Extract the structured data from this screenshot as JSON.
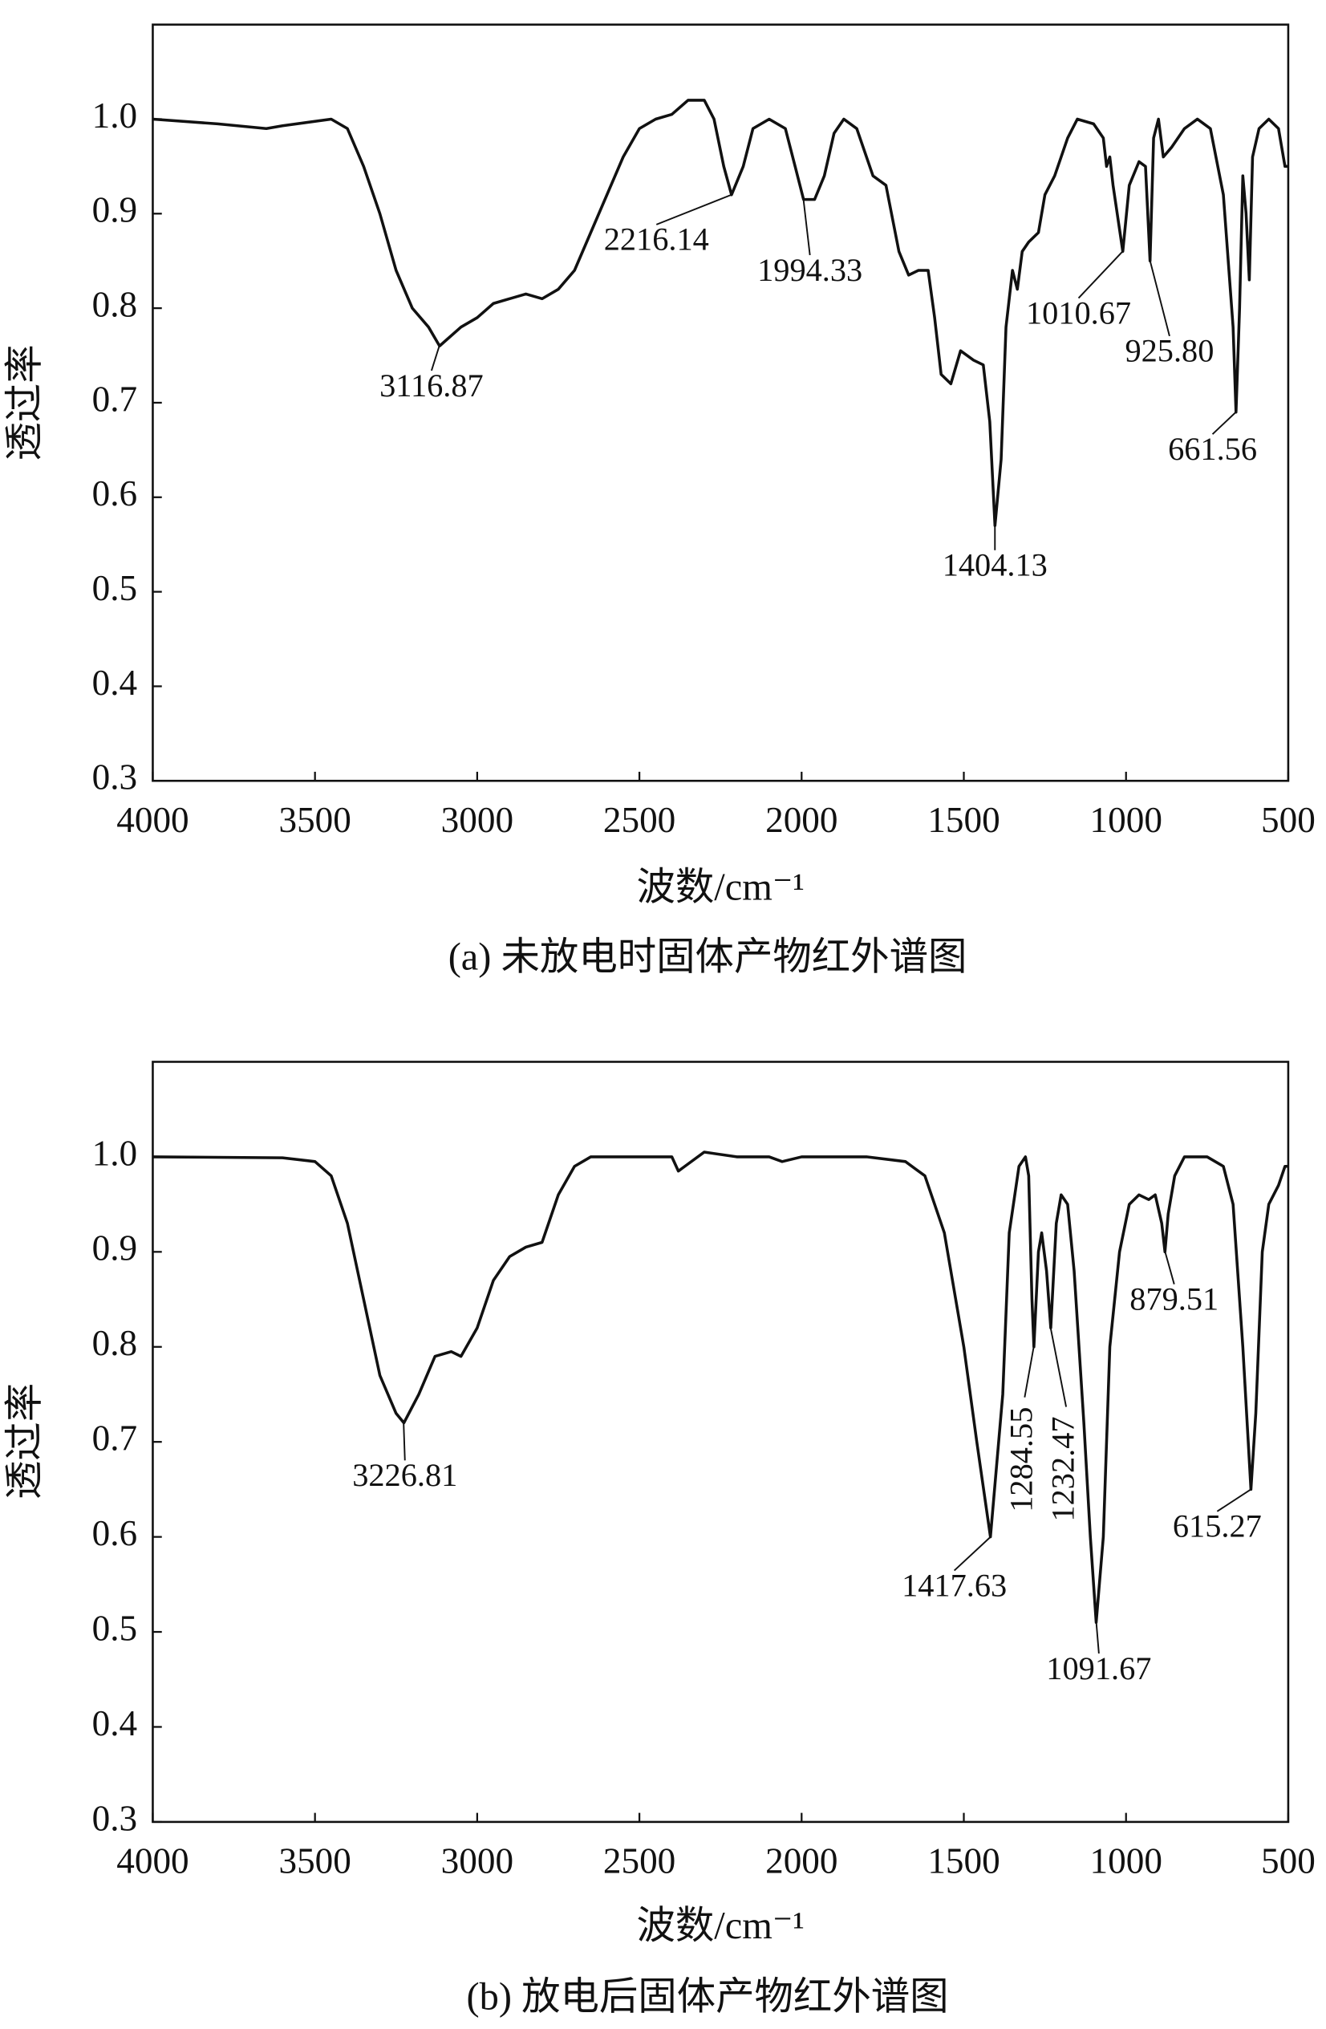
{
  "chart_data": [
    {
      "type": "line",
      "xlabel": "波数/cm⁻¹",
      "ylabel": "透过率",
      "caption": "(a) 未放电时固体产物红外谱图",
      "xlim": [
        4000,
        500
      ],
      "xticks": [
        4000,
        3500,
        3000,
        2500,
        2000,
        1500,
        1000,
        500
      ],
      "ylim": [
        0.3,
        1.1
      ],
      "yticks": [
        0.3,
        0.4,
        0.5,
        0.6,
        0.7,
        0.8,
        0.9,
        {
          "value": 1,
          "label": "1.0"
        }
      ],
      "x": [
        4000,
        3800,
        3650,
        3600,
        3450,
        3400,
        3350,
        3300,
        3250,
        3200,
        3150,
        3116,
        3050,
        3000,
        2950,
        2900,
        2850,
        2800,
        2750,
        2700,
        2650,
        2600,
        2550,
        2500,
        2450,
        2400,
        2350,
        2300,
        2270,
        2240,
        2216,
        2180,
        2150,
        2100,
        2050,
        2020,
        1994,
        1960,
        1930,
        1900,
        1870,
        1830,
        1780,
        1740,
        1700,
        1670,
        1640,
        1610,
        1590,
        1570,
        1540,
        1510,
        1470,
        1440,
        1420,
        1404,
        1385,
        1370,
        1350,
        1335,
        1320,
        1300,
        1270,
        1250,
        1220,
        1180,
        1150,
        1100,
        1070,
        1060,
        1050,
        1040,
        1010,
        990,
        960,
        940,
        926,
        915,
        900,
        885,
        860,
        820,
        780,
        740,
        700,
        670,
        661,
        650,
        640,
        630,
        620,
        610,
        590,
        560,
        530,
        510,
        500
      ],
      "series": [
        {
          "color": "#111111",
          "values": [
            1.0,
            0.995,
            0.99,
            0.993,
            1.0,
            0.99,
            0.95,
            0.9,
            0.84,
            0.8,
            0.78,
            0.76,
            0.78,
            0.79,
            0.805,
            0.81,
            0.815,
            0.81,
            0.82,
            0.84,
            0.88,
            0.92,
            0.96,
            0.99,
            1.0,
            1.005,
            1.02,
            1.02,
            1.0,
            0.95,
            0.92,
            0.95,
            0.99,
            1.0,
            0.99,
            0.95,
            0.915,
            0.915,
            0.94,
            0.985,
            1.0,
            0.99,
            0.94,
            0.93,
            0.86,
            0.835,
            0.84,
            0.84,
            0.79,
            0.73,
            0.72,
            0.755,
            0.745,
            0.74,
            0.68,
            0.57,
            0.64,
            0.78,
            0.84,
            0.82,
            0.86,
            0.87,
            0.88,
            0.92,
            0.94,
            0.98,
            1.0,
            0.995,
            0.98,
            0.95,
            0.96,
            0.93,
            0.86,
            0.93,
            0.955,
            0.95,
            0.85,
            0.98,
            1.0,
            0.96,
            0.97,
            0.99,
            1.0,
            0.99,
            0.92,
            0.78,
            0.69,
            0.8,
            0.94,
            0.9,
            0.83,
            0.96,
            0.99,
            1.0,
            0.99,
            0.95,
            0.95
          ]
        }
      ],
      "annotations": [
        {
          "label": "3116.87",
          "x": 3116.87,
          "y": 0.76
        },
        {
          "label": "2216.14",
          "x": 2216.14,
          "y": 0.92
        },
        {
          "label": "1994.33",
          "x": 1994.33,
          "y": 0.915
        },
        {
          "label": "1404.13",
          "x": 1404.13,
          "y": 0.57
        },
        {
          "label": "1010.67",
          "x": 1010.67,
          "y": 0.86
        },
        {
          "label": "925.80",
          "x": 925.8,
          "y": 0.85
        },
        {
          "label": "661.56",
          "x": 661.56,
          "y": 0.69
        }
      ]
    },
    {
      "type": "line",
      "xlabel": "波数/cm⁻¹",
      "ylabel": "透过率",
      "caption": "(b) 放电后固体产物红外谱图",
      "xlim": [
        4000,
        500
      ],
      "xticks": [
        4000,
        3500,
        3000,
        2500,
        2000,
        1500,
        1000,
        500
      ],
      "ylim": [
        0.3,
        1.1
      ],
      "yticks": [
        0.3,
        0.4,
        0.5,
        0.6,
        0.7,
        0.8,
        0.9,
        {
          "value": 1,
          "label": "1.0"
        }
      ],
      "x": [
        4000,
        3600,
        3500,
        3450,
        3400,
        3350,
        3300,
        3250,
        3226,
        3180,
        3130,
        3080,
        3050,
        3000,
        2950,
        2900,
        2850,
        2800,
        2750,
        2700,
        2650,
        2400,
        2380,
        2360,
        2300,
        2200,
        2100,
        2060,
        2000,
        1800,
        1680,
        1620,
        1560,
        1500,
        1460,
        1418,
        1380,
        1360,
        1330,
        1310,
        1300,
        1290,
        1284,
        1270,
        1260,
        1245,
        1232,
        1215,
        1200,
        1180,
        1160,
        1130,
        1110,
        1092,
        1070,
        1050,
        1020,
        990,
        960,
        930,
        910,
        890,
        880,
        870,
        850,
        820,
        750,
        700,
        670,
        640,
        615,
        600,
        580,
        560,
        530,
        510,
        500
      ],
      "series": [
        {
          "color": "#111111",
          "values": [
            1.0,
            0.999,
            0.995,
            0.98,
            0.93,
            0.85,
            0.77,
            0.73,
            0.72,
            0.75,
            0.79,
            0.795,
            0.79,
            0.82,
            0.87,
            0.895,
            0.905,
            0.91,
            0.96,
            0.99,
            1.0,
            1.0,
            0.985,
            0.99,
            1.005,
            1.0,
            1.0,
            0.995,
            1.0,
            1.0,
            0.995,
            0.98,
            0.92,
            0.8,
            0.7,
            0.6,
            0.75,
            0.92,
            0.99,
            1.0,
            0.98,
            0.85,
            0.8,
            0.9,
            0.92,
            0.88,
            0.82,
            0.93,
            0.96,
            0.95,
            0.88,
            0.72,
            0.6,
            0.51,
            0.6,
            0.8,
            0.9,
            0.95,
            0.96,
            0.955,
            0.96,
            0.93,
            0.9,
            0.94,
            0.98,
            1.0,
            1.0,
            0.99,
            0.95,
            0.8,
            0.65,
            0.73,
            0.9,
            0.95,
            0.97,
            0.99,
            0.99
          ]
        }
      ],
      "annotations": [
        {
          "label": "3226.81",
          "x": 3226.81,
          "y": 0.72
        },
        {
          "label": "1417.63",
          "x": 1417.63,
          "y": 0.6
        },
        {
          "label": "1284.55",
          "x": 1284.55,
          "y": 0.8
        },
        {
          "label": "1232.47",
          "x": 1232.47,
          "y": 0.82
        },
        {
          "label": "1091.67",
          "x": 1091.67,
          "y": 0.51
        },
        {
          "label": "879.51",
          "x": 879.51,
          "y": 0.9
        },
        {
          "label": "615.27",
          "x": 615.27,
          "y": 0.65
        }
      ]
    }
  ]
}
